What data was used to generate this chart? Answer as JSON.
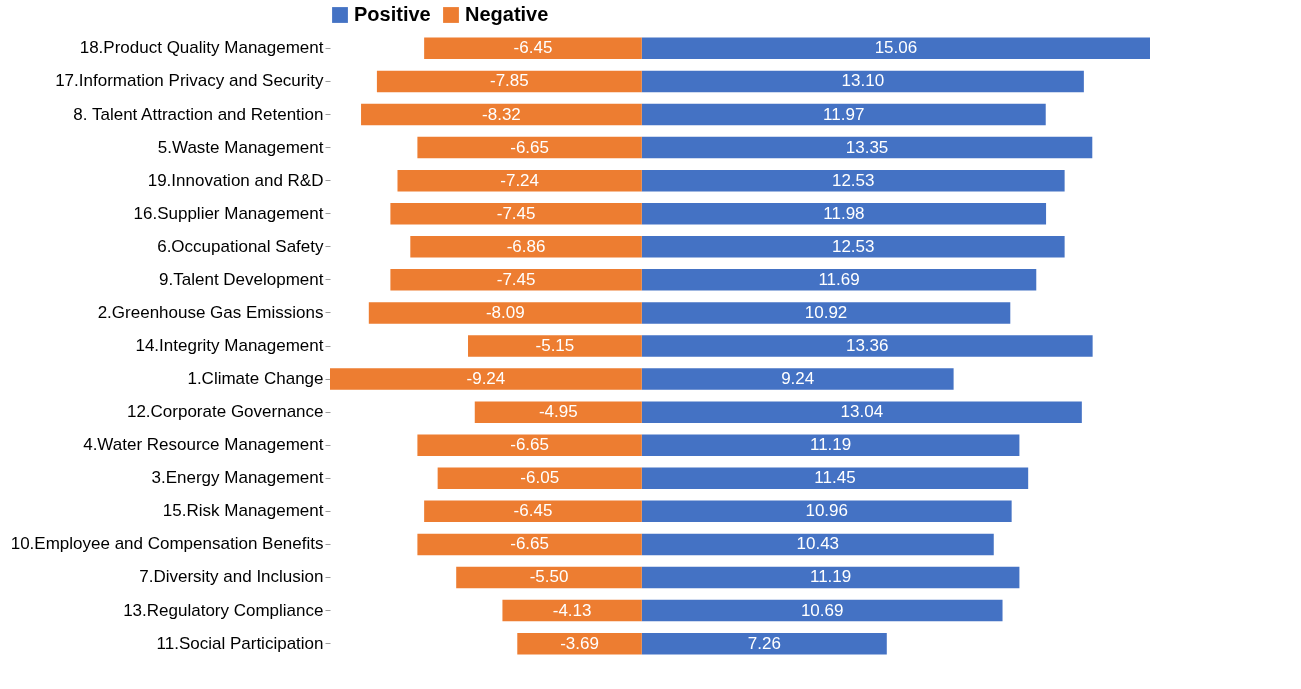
{
  "chart_data": {
    "type": "bar",
    "orientation": "horizontal",
    "stacked": true,
    "legend": "top",
    "categories": [
      "18.Product Quality Management",
      "17.Information Privacy and Security",
      "8. Talent Attraction and Retention",
      "5.Waste Management",
      "19.Innovation and R&D",
      "16.Supplier Management",
      "6.Occupational Safety",
      "9.Talent Development",
      "2.Greenhouse Gas Emissions",
      "14.Integrity Management",
      "1.Climate Change",
      "12.Corporate Governance",
      "4.Water Resource Management",
      "3.Energy Management",
      "15.Risk Management",
      "10.Employee and Compensation Benefits",
      "7.Diversity and Inclusion",
      "13.Regulatory Compliance",
      "11.Social Participation"
    ],
    "series": [
      {
        "name": "Positive",
        "color": "#4472c4",
        "values": [
          15.06,
          13.1,
          11.97,
          13.35,
          12.53,
          11.98,
          12.53,
          11.69,
          10.92,
          13.36,
          9.24,
          13.04,
          11.19,
          11.45,
          10.96,
          10.43,
          11.19,
          10.69,
          7.26
        ],
        "value_labels": [
          "15.06",
          "13.10",
          "11.97",
          "13.35",
          "12.53",
          "11.98",
          "12.53",
          "11.69",
          "10.92",
          "13.36",
          "9.24",
          "13.04",
          "11.19",
          "11.45",
          "10.96",
          "10.43",
          "11.19",
          "10.69",
          "7.26"
        ]
      },
      {
        "name": "Negative",
        "color": "#ed7d31",
        "values": [
          -6.45,
          -7.85,
          -8.32,
          -6.65,
          -7.24,
          -7.45,
          -6.86,
          -7.45,
          -8.09,
          -5.15,
          -9.24,
          -4.95,
          -6.65,
          -6.05,
          -6.45,
          -6.65,
          -5.5,
          -4.13,
          -3.69
        ],
        "value_labels": [
          "-6.45",
          "-7.85",
          "-8.32",
          "-6.65",
          "-7.24",
          "-7.45",
          "-6.86",
          "-7.45",
          "-8.09",
          "-5.15",
          "-9.24",
          "-4.95",
          "-6.65",
          "-6.05",
          "-6.45",
          "-6.65",
          "-5.50",
          "-4.13",
          "-3.69"
        ]
      }
    ]
  }
}
